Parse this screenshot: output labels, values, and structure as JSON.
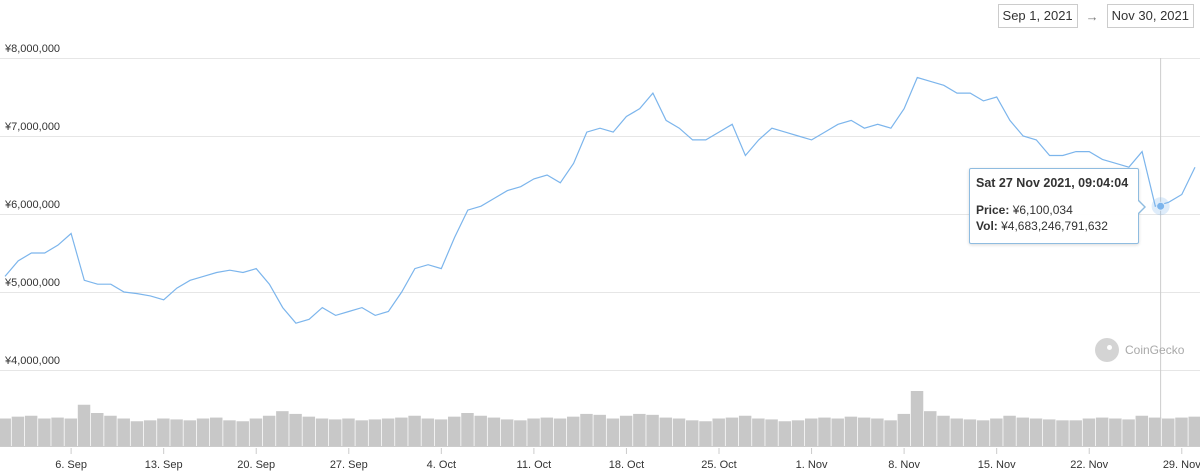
{
  "range": {
    "start": "Sep 1, 2021",
    "end": "Nov 30, 2021",
    "arrow": "→"
  },
  "tooltip": {
    "title": "Sat 27 Nov 2021, 09:04:04",
    "price_label": "Price:",
    "price_value": "¥6,100,034",
    "vol_label": "Vol:",
    "vol_value": "¥4,683,246,791,632"
  },
  "watermark": "CoinGecko",
  "colors": {
    "line": "#7cb5ec",
    "volume": "#c8c8c8",
    "grid": "#e6e6e6",
    "crosshair": "#cccccc"
  },
  "chart_data": {
    "type": "line",
    "x_ticks": [
      "6. Sep",
      "13. Sep",
      "20. Sep",
      "27. Sep",
      "4. Oct",
      "11. Oct",
      "18. Oct",
      "25. Oct",
      "1. Nov",
      "8. Nov",
      "15. Nov",
      "22. Nov",
      "29. Nov"
    ],
    "y_ticks": [
      "¥8,000,000",
      "¥7,000,000",
      "¥6,000,000",
      "¥5,000,000",
      "¥4,000,000"
    ],
    "y_tick_values": [
      8000000,
      7000000,
      6000000,
      5000000,
      4000000
    ],
    "ylim": [
      3500000,
      8000000
    ],
    "xlim": [
      "2021-09-01",
      "2021-11-30"
    ],
    "series": [
      {
        "x": [
          "2021-09-01",
          "2021-09-02",
          "2021-09-03",
          "2021-09-04",
          "2021-09-05",
          "2021-09-06",
          "2021-09-07",
          "2021-09-08",
          "2021-09-09",
          "2021-09-10",
          "2021-09-11",
          "2021-09-12",
          "2021-09-13",
          "2021-09-14",
          "2021-09-15",
          "2021-09-16",
          "2021-09-17",
          "2021-09-18",
          "2021-09-19",
          "2021-09-20",
          "2021-09-21",
          "2021-09-22",
          "2021-09-23",
          "2021-09-24",
          "2021-09-25",
          "2021-09-26",
          "2021-09-27",
          "2021-09-28",
          "2021-09-29",
          "2021-09-30",
          "2021-10-01",
          "2021-10-02",
          "2021-10-03",
          "2021-10-04",
          "2021-10-05",
          "2021-10-06",
          "2021-10-07",
          "2021-10-08",
          "2021-10-09",
          "2021-10-10",
          "2021-10-11",
          "2021-10-12",
          "2021-10-13",
          "2021-10-14",
          "2021-10-15",
          "2021-10-16",
          "2021-10-17",
          "2021-10-18",
          "2021-10-19",
          "2021-10-20",
          "2021-10-21",
          "2021-10-22",
          "2021-10-23",
          "2021-10-24",
          "2021-10-25",
          "2021-10-26",
          "2021-10-27",
          "2021-10-28",
          "2021-10-29",
          "2021-10-30",
          "2021-10-31",
          "2021-11-01",
          "2021-11-02",
          "2021-11-03",
          "2021-11-04",
          "2021-11-05",
          "2021-11-06",
          "2021-11-07",
          "2021-11-08",
          "2021-11-09",
          "2021-11-10",
          "2021-11-11",
          "2021-11-12",
          "2021-11-13",
          "2021-11-14",
          "2021-11-15",
          "2021-11-16",
          "2021-11-17",
          "2021-11-18",
          "2021-11-19",
          "2021-11-20",
          "2021-11-21",
          "2021-11-22",
          "2021-11-23",
          "2021-11-24",
          "2021-11-25",
          "2021-11-26",
          "2021-11-27",
          "2021-11-28",
          "2021-11-29",
          "2021-11-30"
        ],
        "y": [
          5200000,
          5400000,
          5500000,
          5500000,
          5600000,
          5750000,
          5150000,
          5100000,
          5100000,
          5000000,
          4980000,
          4950000,
          4900000,
          5050000,
          5150000,
          5200000,
          5250000,
          5280000,
          5250000,
          5300000,
          5100000,
          4800000,
          4600000,
          4650000,
          4800000,
          4700000,
          4750000,
          4800000,
          4700000,
          4750000,
          5000000,
          5300000,
          5350000,
          5300000,
          5700000,
          6050000,
          6100000,
          6200000,
          6300000,
          6350000,
          6450000,
          6500000,
          6400000,
          6650000,
          7050000,
          7100000,
          7050000,
          7250000,
          7350000,
          7550000,
          7200000,
          7100000,
          6950000,
          6950000,
          7050000,
          7150000,
          6750000,
          6950000,
          7100000,
          7050000,
          7000000,
          6950000,
          7050000,
          7150000,
          7200000,
          7100000,
          7150000,
          7100000,
          7350000,
          7750000,
          7700000,
          7650000,
          7550000,
          7550000,
          7450000,
          7500000,
          7200000,
          7000000,
          6950000,
          6750000,
          6750000,
          6800000,
          6800000,
          6700000,
          6650000,
          6600000,
          6800000,
          6100000,
          6150000,
          6250000,
          6600000
        ]
      }
    ],
    "volume": [
      30,
      32,
      33,
      30,
      31,
      30,
      45,
      36,
      33,
      30,
      27,
      28,
      30,
      29,
      28,
      30,
      31,
      28,
      27,
      30,
      33,
      38,
      35,
      32,
      30,
      29,
      30,
      28,
      29,
      30,
      31,
      33,
      30,
      29,
      32,
      36,
      33,
      31,
      29,
      28,
      30,
      31,
      30,
      32,
      35,
      34,
      30,
      33,
      35,
      34,
      31,
      30,
      28,
      27,
      30,
      31,
      33,
      30,
      29,
      27,
      28,
      30,
      31,
      30,
      32,
      31,
      30,
      28,
      35,
      60,
      38,
      33,
      30,
      29,
      28,
      30,
      33,
      31,
      30,
      29,
      28,
      28,
      30,
      31,
      30,
      29,
      33,
      31,
      30,
      31,
      32
    ],
    "highlight": {
      "x": "2021-11-27",
      "y": 6100034
    }
  }
}
